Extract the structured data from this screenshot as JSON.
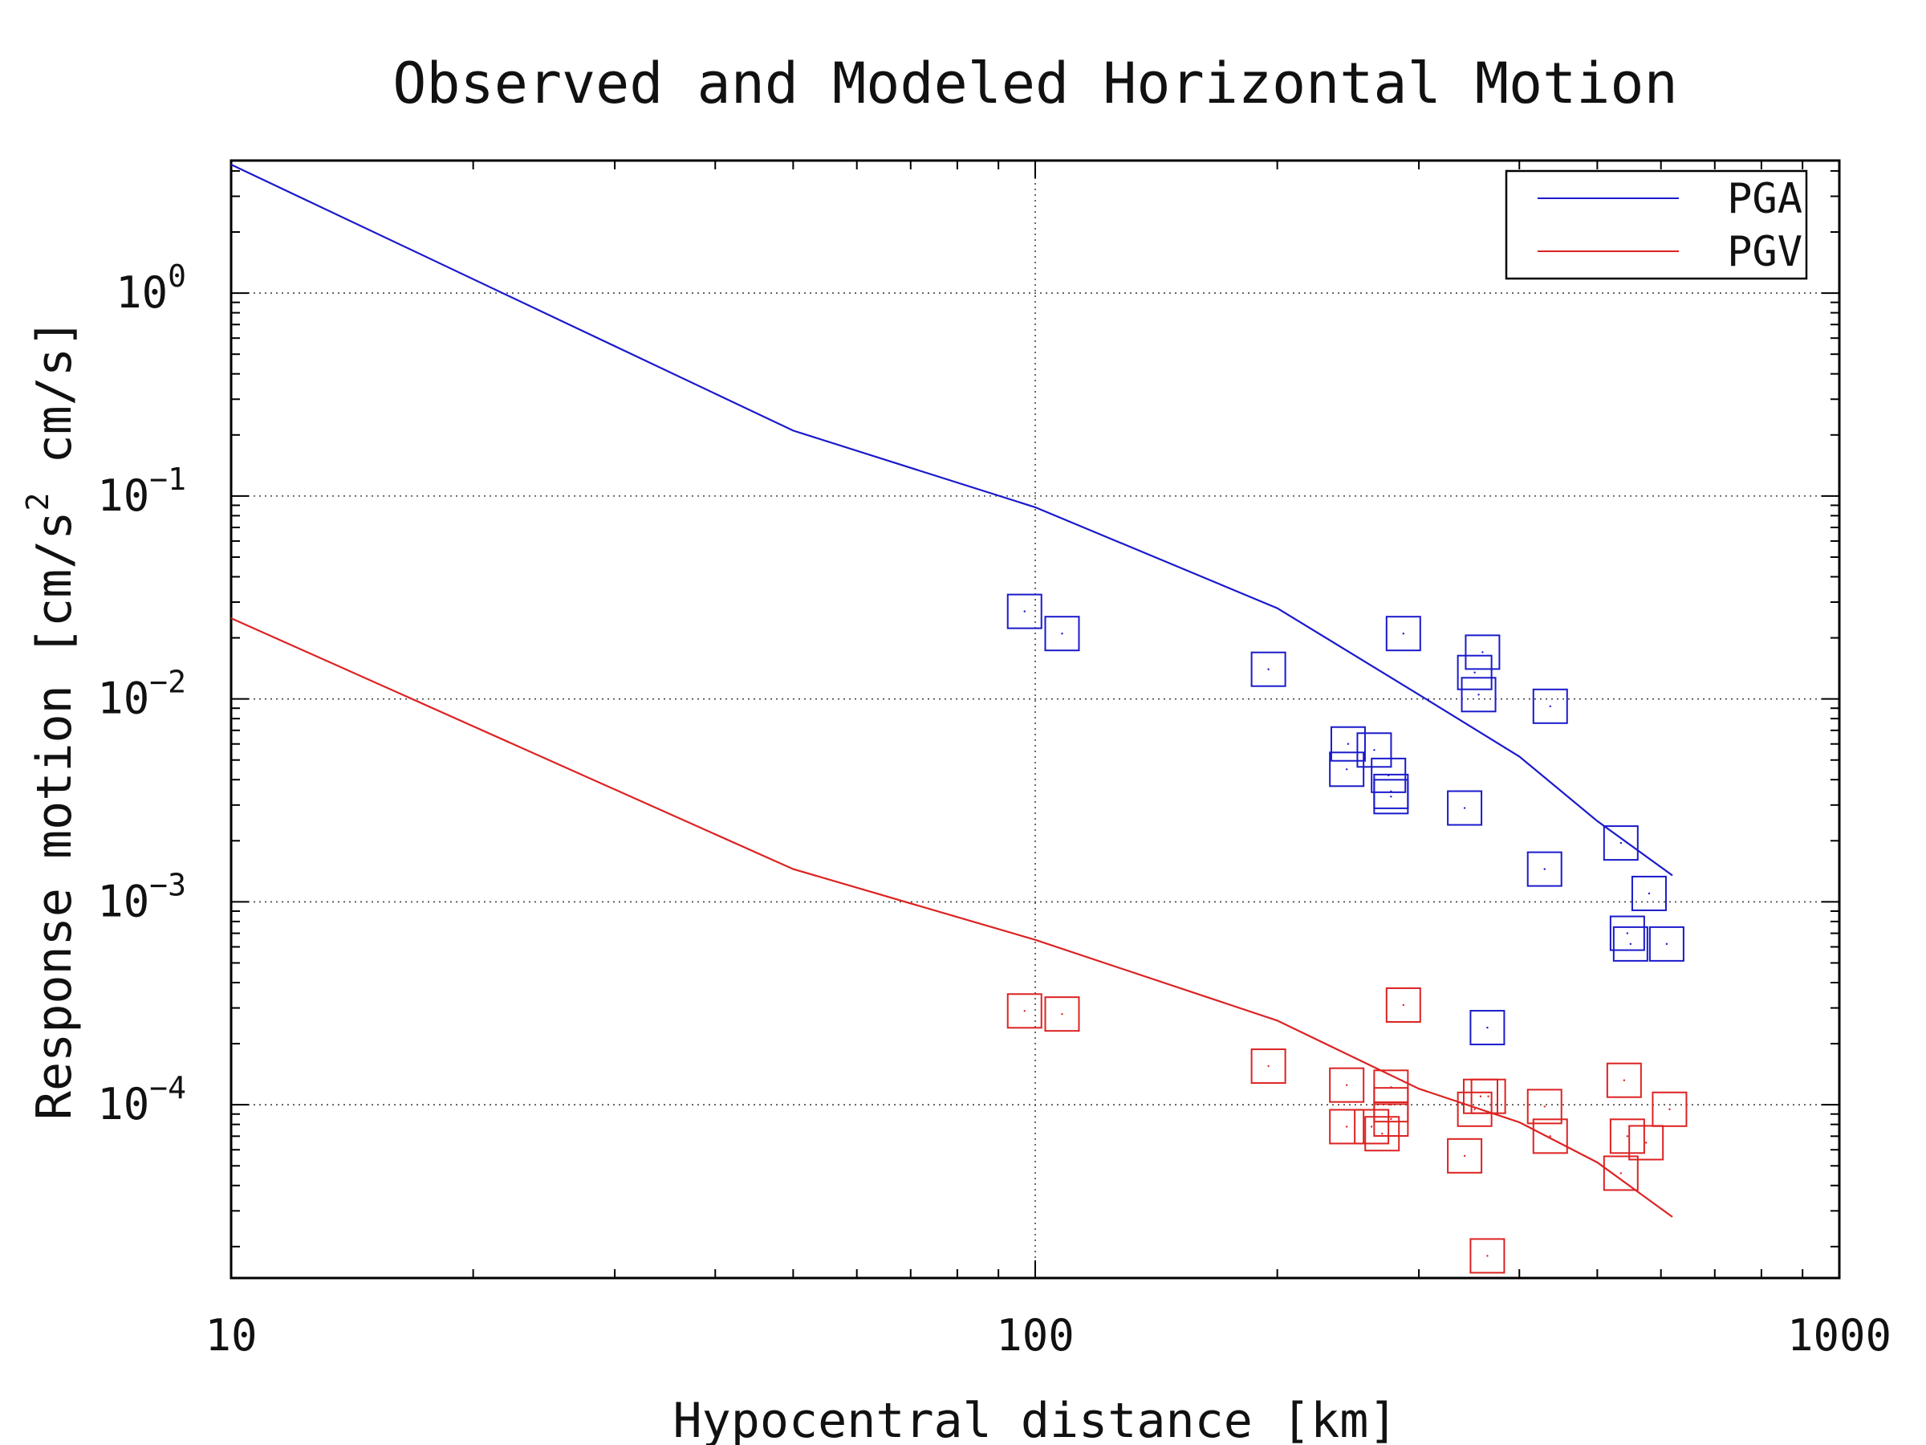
{
  "chart_data": {
    "type": "scatter",
    "title": "Observed and Modeled Horizontal Motion",
    "xlabel": "Hypocentral distance [km]",
    "ylabel_parts": [
      "Response motion [cm/s",
      "2",
      " cm/s]"
    ],
    "xscale": "log",
    "yscale": "log",
    "xlim": [
      10,
      1000
    ],
    "ylim": [
      1.4e-05,
      4.5
    ],
    "x_ticks": [
      {
        "value": 10,
        "label": "10"
      },
      {
        "value": 100,
        "label": "100"
      },
      {
        "value": 1000,
        "label": "1000"
      }
    ],
    "y_ticks": [
      {
        "value": 1,
        "base": "10",
        "exp": "0"
      },
      {
        "value": 0.1,
        "base": "10",
        "exp": "−1"
      },
      {
        "value": 0.01,
        "base": "10",
        "exp": "−2"
      },
      {
        "value": 0.001,
        "base": "10",
        "exp": "−3"
      },
      {
        "value": 0.0001,
        "base": "10",
        "exp": "−4"
      }
    ],
    "grid": "dotted at major ticks",
    "legend_position": "top-right",
    "series": [
      {
        "name": "PGA",
        "color": "#1a1acc",
        "model_line": [
          [
            10,
            4.3
          ],
          [
            50,
            0.21
          ],
          [
            100,
            0.088
          ],
          [
            200,
            0.028
          ],
          [
            300,
            0.0105
          ],
          [
            400,
            0.0052
          ],
          [
            500,
            0.0025
          ],
          [
            620,
            0.00135
          ]
        ],
        "observed": [
          [
            97,
            0.027
          ],
          [
            108,
            0.021
          ],
          [
            195,
            0.014
          ],
          [
            287,
            0.021
          ],
          [
            352,
            0.0135
          ],
          [
            360,
            0.017
          ],
          [
            356,
            0.0105
          ],
          [
            437,
            0.0092
          ],
          [
            245,
            0.006
          ],
          [
            264,
            0.0056
          ],
          [
            244,
            0.0045
          ],
          [
            275,
            0.0042
          ],
          [
            277,
            0.0033
          ],
          [
            277,
            0.0035
          ],
          [
            342,
            0.0029
          ],
          [
            430,
            0.00145
          ],
          [
            535,
            0.00195
          ],
          [
            580,
            0.0011
          ],
          [
            545,
            0.0007
          ],
          [
            550,
            0.00062
          ],
          [
            610,
            0.00062
          ],
          [
            365,
            0.00024
          ]
        ]
      },
      {
        "name": "PGV",
        "color": "#dd2222",
        "model_line": [
          [
            10,
            0.025
          ],
          [
            50,
            0.00145
          ],
          [
            100,
            0.00065
          ],
          [
            200,
            0.00026
          ],
          [
            300,
            0.00012
          ],
          [
            400,
            8.2e-05
          ],
          [
            500,
            5.2e-05
          ],
          [
            620,
            2.8e-05
          ]
        ],
        "observed": [
          [
            97,
            0.00029
          ],
          [
            108,
            0.00028
          ],
          [
            195,
            0.000155
          ],
          [
            287,
            0.00031
          ],
          [
            244,
            0.000125
          ],
          [
            277,
            0.000122
          ],
          [
            277,
            0.0001
          ],
          [
            277,
            8.5e-05
          ],
          [
            244,
            7.8e-05
          ],
          [
            262,
            7.8e-05
          ],
          [
            270,
            7.2e-05
          ],
          [
            352,
            9.5e-05
          ],
          [
            358,
            0.00011
          ],
          [
            366,
            0.00011
          ],
          [
            342,
            5.6e-05
          ],
          [
            365,
            1.8e-05
          ],
          [
            430,
            9.8e-05
          ],
          [
            437,
            7e-05
          ],
          [
            540,
            0.000132
          ],
          [
            545,
            7e-05
          ],
          [
            575,
            6.5e-05
          ],
          [
            535,
            4.6e-05
          ],
          [
            615,
            9.5e-05
          ]
        ]
      }
    ]
  }
}
